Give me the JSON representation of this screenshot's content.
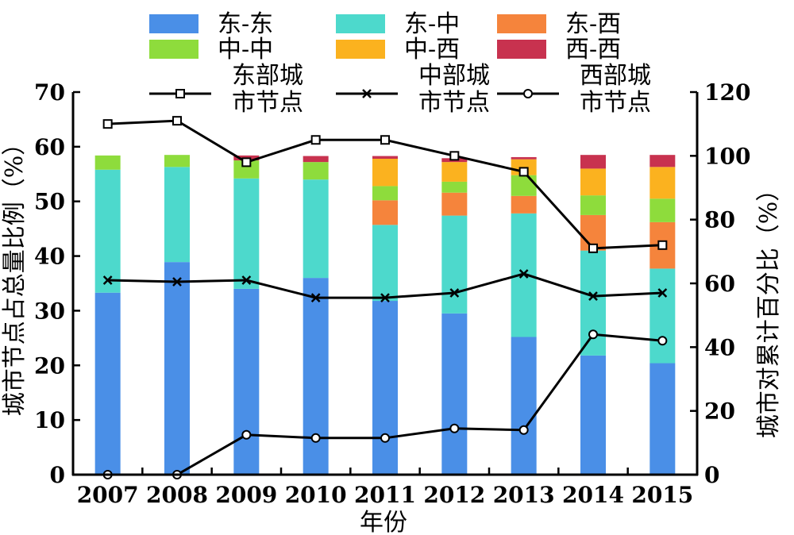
{
  "chart_data": {
    "type": "bar",
    "stacked": true,
    "categories": [
      "2007",
      "2008",
      "2009",
      "2010",
      "2011",
      "2012",
      "2013",
      "2014",
      "2015"
    ],
    "xlabel": "年份",
    "ylabel": "城市节点占总量比例（%）",
    "y2label": "城市对累计百分比（%）",
    "ylim": [
      0,
      70
    ],
    "y2lim": [
      0,
      120
    ],
    "yticks": [
      0,
      10,
      20,
      30,
      40,
      50,
      60,
      70
    ],
    "y2ticks": [
      0,
      20,
      40,
      60,
      80,
      100,
      120
    ],
    "grid": false,
    "legend_position": "top",
    "bar_series": [
      {
        "name": "东-东",
        "color": "#4a8fe7",
        "values": [
          33.3,
          38.9,
          34.0,
          36.0,
          31.8,
          29.5,
          25.2,
          21.8,
          20.4
        ]
      },
      {
        "name": "东-中",
        "color": "#4dd9cc",
        "values": [
          22.5,
          17.4,
          20.2,
          18.0,
          13.9,
          17.9,
          22.6,
          19.2,
          17.3
        ]
      },
      {
        "name": "东-西",
        "color": "#f5843c",
        "values": [
          0,
          0,
          0,
          0,
          4.5,
          4.2,
          3.2,
          6.5,
          8.5
        ]
      },
      {
        "name": "中-中",
        "color": "#8edc3c",
        "values": [
          2.6,
          2.2,
          3.3,
          3.2,
          2.6,
          2.0,
          3.8,
          3.6,
          4.3
        ]
      },
      {
        "name": "中-西",
        "color": "#fbb21f",
        "values": [
          0,
          0,
          0,
          0,
          5.0,
          3.6,
          2.9,
          4.9,
          5.8
        ]
      },
      {
        "name": "西-西",
        "color": "#c8324f",
        "values": [
          0,
          0,
          0.9,
          1.1,
          0.5,
          0.7,
          0.4,
          2.5,
          2.2
        ]
      }
    ],
    "line_series": [
      {
        "name": "东部城市节点",
        "name_lines": [
          "东部城",
          "市节点"
        ],
        "marker": "square",
        "axis": "right",
        "values": [
          110,
          111,
          98,
          105,
          105,
          100,
          95,
          71,
          72
        ]
      },
      {
        "name": "中部城市节点",
        "name_lines": [
          "中部城",
          "市节点"
        ],
        "marker": "cross",
        "axis": "right",
        "values": [
          61,
          60.5,
          61,
          55.5,
          55.5,
          57,
          63,
          56,
          57
        ]
      },
      {
        "name": "西部城市节点",
        "name_lines": [
          "西部城",
          "市节点"
        ],
        "marker": "circle",
        "axis": "right",
        "values": [
          0,
          0,
          12.5,
          11.5,
          11.5,
          14.5,
          14,
          44,
          42
        ]
      }
    ]
  }
}
